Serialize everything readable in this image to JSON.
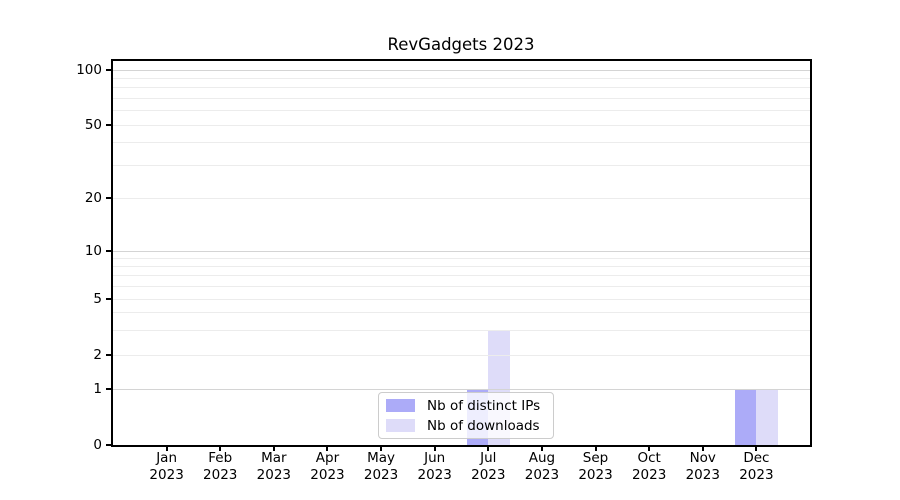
{
  "chart_data": {
    "type": "bar",
    "title": "RevGadgets 2023",
    "categories": [
      {
        "month": "Jan",
        "year": "2023"
      },
      {
        "month": "Feb",
        "year": "2023"
      },
      {
        "month": "Mar",
        "year": "2023"
      },
      {
        "month": "Apr",
        "year": "2023"
      },
      {
        "month": "May",
        "year": "2023"
      },
      {
        "month": "Jun",
        "year": "2023"
      },
      {
        "month": "Jul",
        "year": "2023"
      },
      {
        "month": "Aug",
        "year": "2023"
      },
      {
        "month": "Sep",
        "year": "2023"
      },
      {
        "month": "Oct",
        "year": "2023"
      },
      {
        "month": "Nov",
        "year": "2023"
      },
      {
        "month": "Dec",
        "year": "2023"
      }
    ],
    "series": [
      {
        "name": "Nb of distinct IPs",
        "color": "#acabf8",
        "values": [
          0,
          0,
          0,
          0,
          0,
          0,
          1,
          0,
          0,
          0,
          0,
          1
        ]
      },
      {
        "name": "Nb of downloads",
        "color": "#dedcf9",
        "values": [
          0,
          0,
          0,
          0,
          0,
          0,
          3,
          0,
          0,
          0,
          0,
          1
        ]
      }
    ],
    "y_axis": {
      "scale": "symlog",
      "ticks": [
        0,
        1,
        2,
        5,
        10,
        20,
        50,
        100
      ],
      "minor_gridlines": [
        3,
        4,
        6,
        7,
        8,
        9,
        30,
        40,
        60,
        70,
        80,
        90
      ],
      "range": [
        0,
        110
      ]
    },
    "x_axis": {
      "label_lines": 2
    },
    "grid": "horizontal on, minor log subdivisions",
    "legend_position": "lower center",
    "colors": {
      "grid_minor": "#ececec",
      "grid_major": "#d4d4d4",
      "axis": "#000000",
      "legend_border": "#cccccc",
      "background": "#ffffff"
    }
  }
}
